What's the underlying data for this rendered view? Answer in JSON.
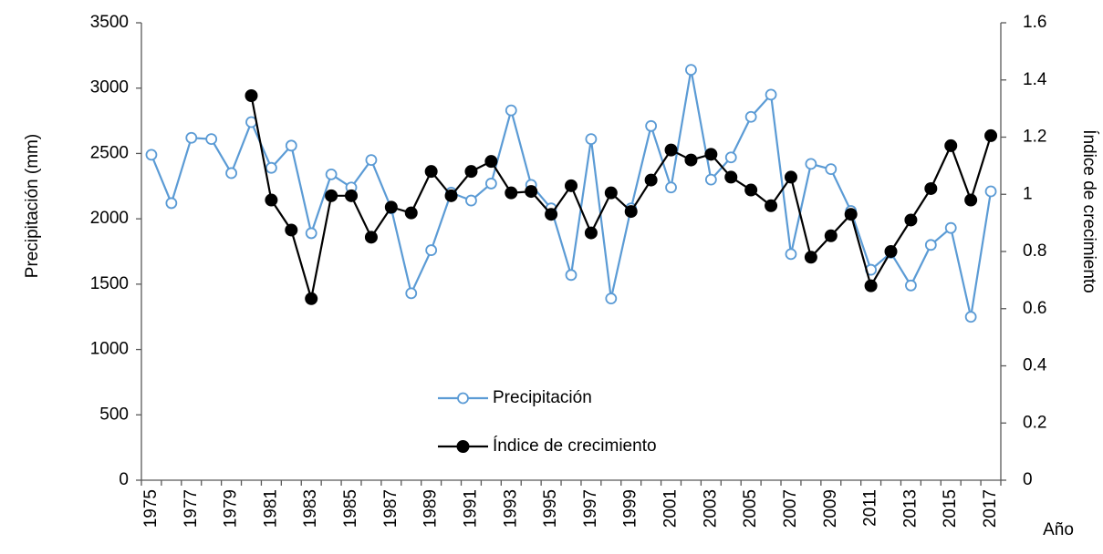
{
  "chart_data": {
    "type": "line",
    "categories": [
      "1975",
      null,
      "1977",
      null,
      "1979",
      null,
      "1981",
      null,
      "1983",
      null,
      "1985",
      null,
      "1987",
      null,
      "1989",
      null,
      "1991",
      null,
      "1993",
      null,
      "1995",
      null,
      "1997",
      null,
      "1999",
      null,
      "2001",
      null,
      "2003",
      null,
      "2005",
      null,
      "2007",
      null,
      "2009",
      null,
      "2011",
      null,
      "2013",
      null,
      "2015",
      null,
      "2017"
    ],
    "x_label": "Año",
    "y_label": "Precipitación (mm)",
    "y2_label": "Índice de crecimiento",
    "ylim": [
      0,
      3500
    ],
    "yticks": [
      0,
      500,
      1000,
      1500,
      2000,
      2500,
      3000,
      3500
    ],
    "y2lim": [
      0,
      1.6
    ],
    "y2ticks": [
      0,
      0.2,
      0.4,
      0.6,
      0.8,
      1,
      1.2,
      1.4,
      1.6
    ],
    "legend": "lower center",
    "grid": false,
    "series": [
      {
        "name": "Precipitación",
        "color": "#5b9bd5",
        "marker": "open-circle",
        "values": [
          2490,
          2120,
          2620,
          2610,
          2350,
          2740,
          2390,
          2560,
          1890,
          2340,
          2240,
          2450,
          2080,
          1430,
          1760,
          2200,
          2140,
          2270,
          2830,
          2260,
          2080,
          1570,
          2610,
          1390,
          2080,
          2710,
          2240,
          3140,
          2300,
          2470,
          2780,
          2950,
          1730,
          2420,
          2380,
          2060,
          1610,
          1740,
          1490,
          1800,
          1930,
          1250,
          2210
        ]
      },
      {
        "name": "Índice de crecimiento",
        "color": "#000000",
        "marker": "filled-circle",
        "axis": "y2",
        "values": [
          null,
          null,
          null,
          null,
          null,
          1.345,
          0.98,
          0.875,
          0.635,
          0.995,
          0.995,
          0.85,
          0.955,
          0.935,
          1.08,
          0.995,
          1.08,
          1.115,
          1.005,
          1.01,
          0.93,
          1.03,
          0.865,
          1.005,
          0.94,
          1.05,
          1.155,
          1.12,
          1.14,
          1.06,
          1.015,
          0.96,
          1.06,
          0.78,
          0.855,
          0.93,
          0.68,
          0.8,
          0.91,
          1.02,
          1.17,
          0.98,
          1.205
        ]
      }
    ]
  }
}
